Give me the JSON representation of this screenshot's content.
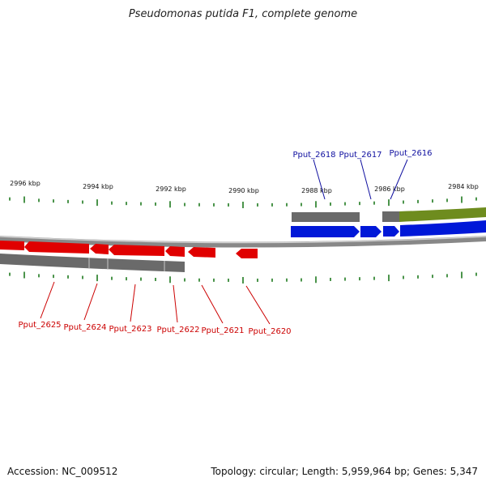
{
  "header": {
    "title": "Pseudomonas putida F1, complete genome"
  },
  "footer": {
    "accession": "Accession: NC_009512",
    "summary": "Topology: circular; Length: 5,959,964 bp; Genes: 5,347"
  },
  "colors": {
    "forward_gene": "#0018d8",
    "reverse_gene": "#e00000",
    "other_feature": "#6e8c1e",
    "cds_track": "#6a6a6a",
    "ticks": "#1e7a1e",
    "forward_label": "#1010a0",
    "reverse_label": "#cc0000"
  },
  "scale_labels": [
    "2996 kbp",
    "2994 kbp",
    "2992 kbp",
    "2990 kbp",
    "2988 kbp",
    "2986 kbp",
    "2984 kbp"
  ],
  "forward_genes": [
    "Pput_2618",
    "Pput_2617",
    "Pput_2616"
  ],
  "reverse_genes": [
    "Pput_2625",
    "Pput_2624",
    "Pput_2623",
    "Pput_2622",
    "Pput_2621",
    "Pput_2620"
  ]
}
